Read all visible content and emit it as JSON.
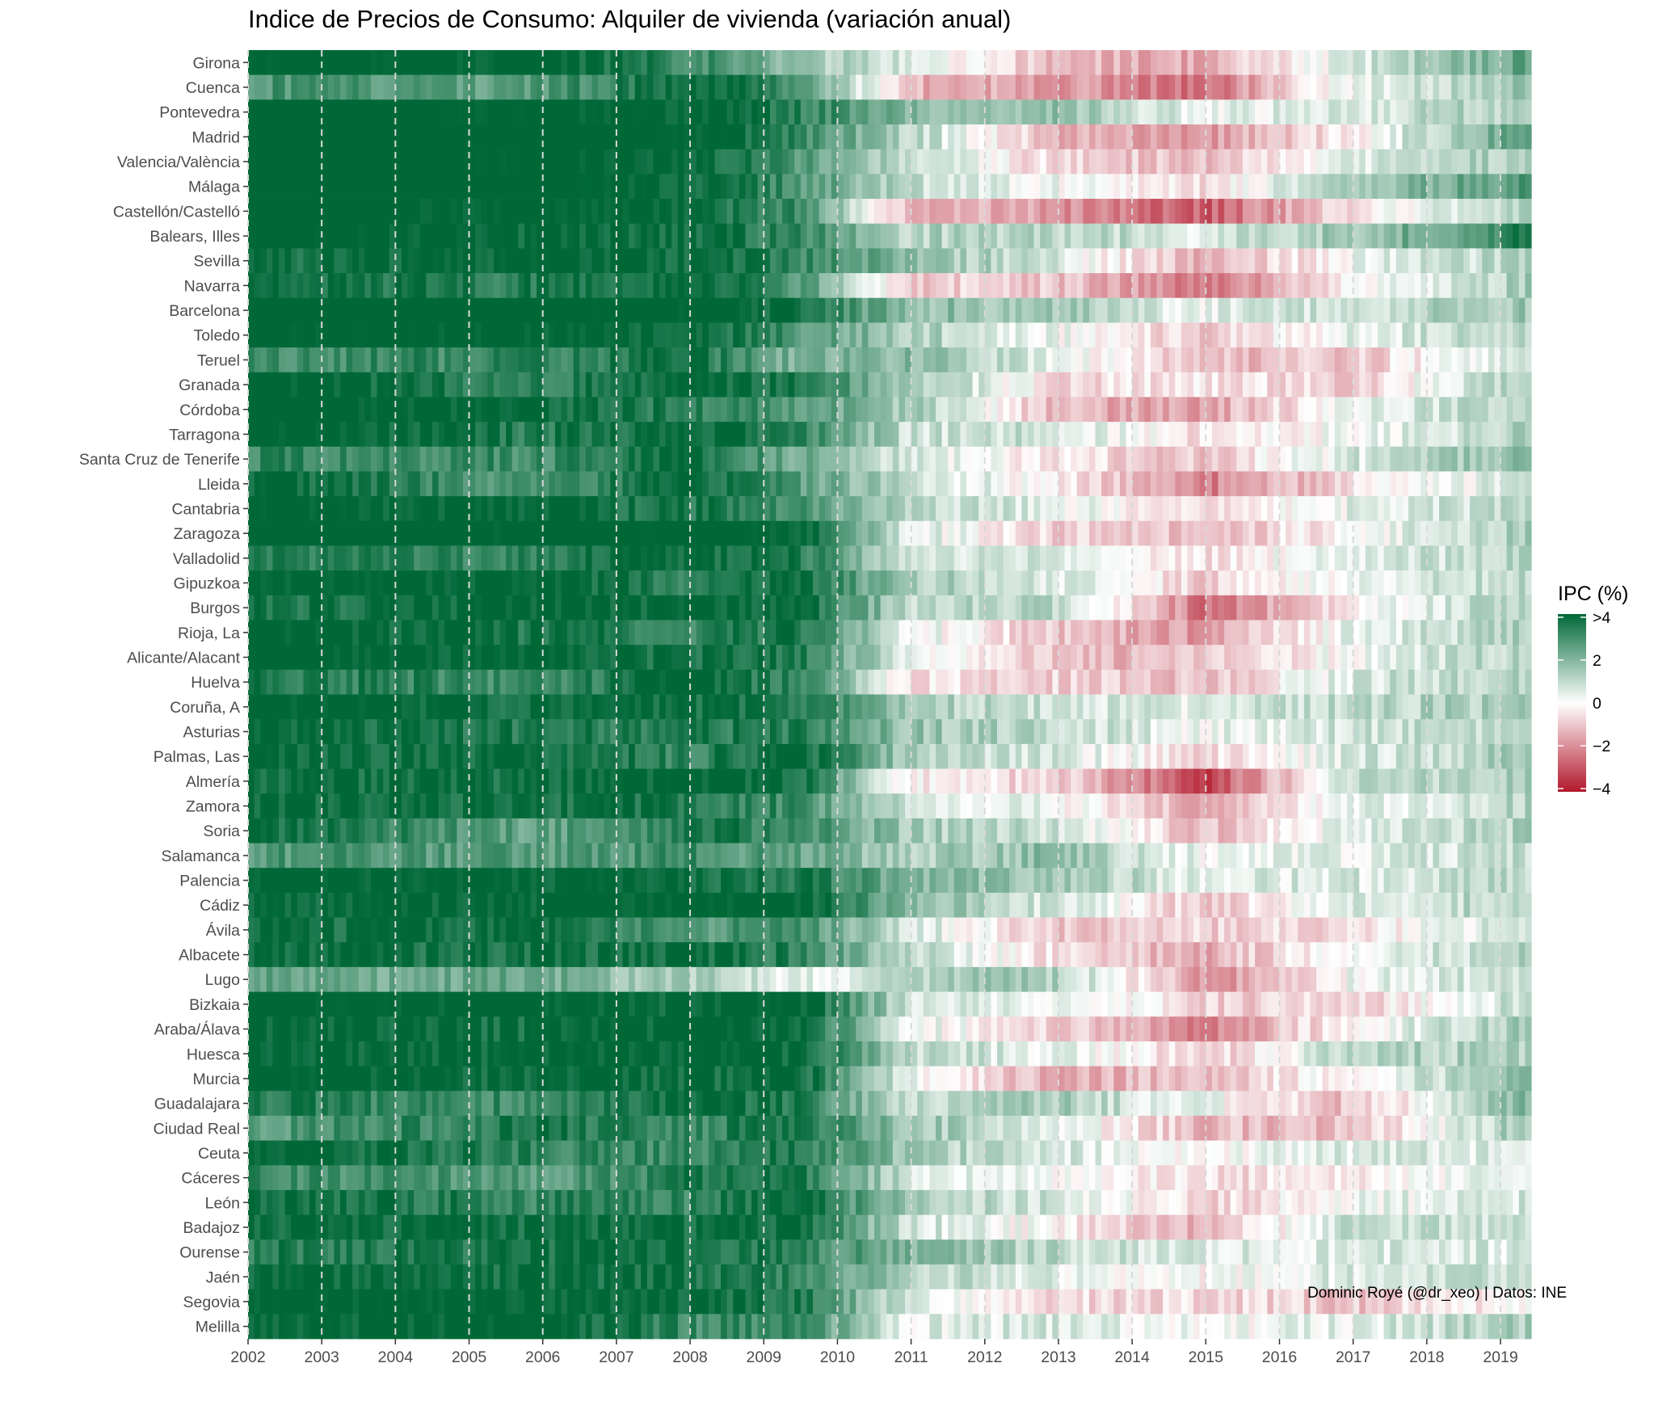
{
  "chart_data": {
    "type": "heatmap",
    "title": "Indice de Precios de Consumo: Alquiler de vivienda (variación anual)",
    "caption": "Dominic Royé (@dr_xeo) | Datos: INE",
    "xlabel": "",
    "ylabel": "",
    "x_ticks": [
      "2002",
      "2003",
      "2004",
      "2005",
      "2006",
      "2007",
      "2008",
      "2009",
      "2010",
      "2011",
      "2012",
      "2013",
      "2014",
      "2015",
      "2016",
      "2017",
      "2018",
      "2019"
    ],
    "x_range": [
      "2002-01",
      "2019-05"
    ],
    "grid": "dashed vertical lines at each year",
    "legend": {
      "title": "IPC (%)",
      "position": "right",
      "breaks": [
        ">4",
        "2",
        "0",
        "−2",
        "−4"
      ],
      "colors": [
        "#006837",
        "#ffffff",
        "#b2182b"
      ],
      "limits": [
        -4,
        4
      ]
    },
    "provinces": [
      "Girona",
      "Cuenca",
      "Pontevedra",
      "Madrid",
      "Valencia/València",
      "Málaga",
      "Castellón/Castelló",
      "Balears, Illes",
      "Sevilla",
      "Navarra",
      "Barcelona",
      "Toledo",
      "Teruel",
      "Granada",
      "Córdoba",
      "Tarragona",
      "Santa Cruz de Tenerife",
      "Lleida",
      "Cantabria",
      "Zaragoza",
      "Valladolid",
      "Gipuzkoa",
      "Burgos",
      "Rioja, La",
      "Alicante/Alacant",
      "Huelva",
      "Coruña, A",
      "Asturias",
      "Palmas, Las",
      "Almería",
      "Zamora",
      "Soria",
      "Salamanca",
      "Palencia",
      "Cádiz",
      "Ávila",
      "Albacete",
      "Lugo",
      "Bizkaia",
      "Araba/Álava",
      "Huesca",
      "Murcia",
      "Guadalajara",
      "Ciudad Real",
      "Ceuta",
      "Cáceres",
      "León",
      "Badajoz",
      "Ourense",
      "Jaén",
      "Segovia",
      "Melilla"
    ],
    "period_breaks": [
      "2002",
      "2006",
      "2008",
      "2009.5",
      "2011",
      "2013",
      "2015",
      "2017",
      "2019.4"
    ],
    "series": [
      {
        "name": "Girona",
        "values": [
          4.5,
          4.3,
          3.2,
          1.6,
          0.5,
          -1.2,
          -1.5,
          0.5,
          2.6
        ]
      },
      {
        "name": "Cuenca",
        "values": [
          2.8,
          2.6,
          4.2,
          3.0,
          -1.3,
          -1.6,
          -2.5,
          0.3,
          1.8
        ]
      },
      {
        "name": "Pontevedra",
        "values": [
          4.6,
          4.4,
          4.2,
          3.4,
          1.8,
          1.6,
          0.2,
          0.6,
          1.4
        ]
      },
      {
        "name": "Madrid",
        "values": [
          5.2,
          5.0,
          4.4,
          3.2,
          1.2,
          -1.2,
          -1.8,
          -0.2,
          2.8
        ]
      },
      {
        "name": "Valencia/València",
        "values": [
          4.8,
          4.4,
          4.2,
          2.8,
          0.8,
          -0.8,
          -1.2,
          0.4,
          1.6
        ]
      },
      {
        "name": "Málaga",
        "values": [
          4.8,
          4.6,
          4.0,
          2.8,
          1.0,
          0.2,
          -0.6,
          1.4,
          2.8
        ]
      },
      {
        "name": "Castellón/Castelló",
        "values": [
          4.2,
          4.4,
          4.0,
          3.0,
          -1.2,
          -1.8,
          -2.8,
          -0.4,
          1.4
        ]
      },
      {
        "name": "Balears, Illes",
        "values": [
          4.6,
          4.0,
          3.8,
          3.2,
          1.2,
          1.2,
          0.6,
          1.6,
          3.4
        ]
      },
      {
        "name": "Sevilla",
        "values": [
          3.6,
          4.2,
          3.8,
          3.2,
          1.8,
          0.6,
          -1.6,
          0.2,
          1.2
        ]
      },
      {
        "name": "Navarra",
        "values": [
          3.8,
          3.4,
          4.2,
          2.8,
          -0.8,
          -1.0,
          -2.4,
          -0.2,
          1.4
        ]
      },
      {
        "name": "Barcelona",
        "values": [
          5.0,
          4.6,
          4.4,
          3.6,
          1.8,
          1.4,
          0.4,
          0.8,
          1.6
        ]
      },
      {
        "name": "Toledo",
        "values": [
          4.4,
          4.2,
          4.0,
          2.8,
          1.4,
          0.2,
          -1.0,
          0.4,
          1.2
        ]
      },
      {
        "name": "Teruel",
        "values": [
          3.0,
          3.2,
          3.8,
          1.8,
          2.0,
          0.4,
          -1.2,
          -1.0,
          1.0
        ]
      },
      {
        "name": "Granada",
        "values": [
          4.6,
          3.2,
          4.2,
          3.4,
          1.6,
          -0.6,
          -0.4,
          -0.8,
          1.4
        ]
      },
      {
        "name": "Córdoba",
        "values": [
          4.6,
          4.0,
          3.4,
          2.8,
          1.4,
          -1.4,
          -1.6,
          0.2,
          1.4
        ]
      },
      {
        "name": "Tarragona",
        "values": [
          4.6,
          3.4,
          4.0,
          3.4,
          0.8,
          0.8,
          -0.6,
          0.2,
          1.2
        ]
      },
      {
        "name": "Santa Cruz de Tenerife",
        "values": [
          3.2,
          3.0,
          4.0,
          2.2,
          0.6,
          -0.4,
          -1.0,
          0.6,
          1.8
        ]
      },
      {
        "name": "Lleida",
        "values": [
          4.0,
          2.6,
          4.2,
          2.6,
          1.0,
          -0.2,
          -2.2,
          -0.6,
          0.8
        ]
      },
      {
        "name": "Cantabria",
        "values": [
          4.4,
          4.0,
          3.6,
          3.0,
          1.0,
          0.4,
          -0.6,
          0.4,
          1.0
        ]
      },
      {
        "name": "Zaragoza",
        "values": [
          4.8,
          4.4,
          4.6,
          4.2,
          0.6,
          -0.8,
          -1.2,
          0.0,
          1.4
        ]
      },
      {
        "name": "Valladolid",
        "values": [
          3.6,
          3.2,
          4.0,
          3.6,
          0.6,
          0.6,
          -0.6,
          0.6,
          1.0
        ]
      },
      {
        "name": "Gipuzkoa",
        "values": [
          4.4,
          4.2,
          3.2,
          3.8,
          1.4,
          0.6,
          -0.8,
          0.2,
          1.2
        ]
      },
      {
        "name": "Burgos",
        "values": [
          3.6,
          4.2,
          4.0,
          4.0,
          1.0,
          1.2,
          -2.6,
          -0.2,
          1.4
        ]
      },
      {
        "name": "Rioja, La",
        "values": [
          4.4,
          3.6,
          3.2,
          3.6,
          0.4,
          -1.0,
          -1.8,
          0.4,
          1.2
        ]
      },
      {
        "name": "Alicante/Alacant",
        "values": [
          4.6,
          3.8,
          3.8,
          3.6,
          0.2,
          -1.2,
          -1.2,
          0.2,
          1.2
        ]
      },
      {
        "name": "Huelva",
        "values": [
          3.6,
          3.0,
          4.2,
          3.0,
          -0.4,
          -0.8,
          -1.2,
          0.6,
          1.4
        ]
      },
      {
        "name": "Coruña, A",
        "values": [
          4.4,
          3.8,
          3.8,
          3.6,
          1.4,
          0.8,
          0.4,
          1.0,
          1.4
        ]
      },
      {
        "name": "Asturias",
        "values": [
          4.2,
          3.4,
          3.4,
          3.4,
          1.6,
          1.0,
          0.2,
          0.8,
          1.0
        ]
      },
      {
        "name": "Palmas, Las",
        "values": [
          4.0,
          3.8,
          3.2,
          4.2,
          1.2,
          0.6,
          -0.6,
          0.6,
          1.4
        ]
      },
      {
        "name": "Almería",
        "values": [
          3.8,
          3.8,
          4.2,
          3.8,
          -0.2,
          -0.8,
          -3.2,
          0.8,
          1.4
        ]
      },
      {
        "name": "Zamora",
        "values": [
          4.0,
          3.8,
          3.6,
          3.0,
          0.6,
          0.2,
          -1.6,
          0.2,
          1.2
        ]
      },
      {
        "name": "Soria",
        "values": [
          4.0,
          2.4,
          3.6,
          3.2,
          1.4,
          0.8,
          -1.2,
          0.6,
          1.2
        ]
      },
      {
        "name": "Salamanca",
        "values": [
          2.8,
          2.6,
          3.0,
          2.4,
          1.2,
          1.8,
          0.2,
          0.4,
          1.0
        ]
      },
      {
        "name": "Palencia",
        "values": [
          4.4,
          4.2,
          3.8,
          3.6,
          2.0,
          1.6,
          0.4,
          0.6,
          1.0
        ]
      },
      {
        "name": "Cádiz",
        "values": [
          4.0,
          4.2,
          4.4,
          4.2,
          1.8,
          0.6,
          -1.0,
          0.6,
          1.2
        ]
      },
      {
        "name": "Ávila",
        "values": [
          3.8,
          3.8,
          2.6,
          3.0,
          0.8,
          -1.0,
          -0.8,
          -0.6,
          1.0
        ]
      },
      {
        "name": "Albacete",
        "values": [
          3.8,
          3.6,
          4.0,
          3.2,
          1.0,
          -0.6,
          -1.4,
          0.2,
          1.2
        ]
      },
      {
        "name": "Lugo",
        "values": [
          2.4,
          2.2,
          1.4,
          0.2,
          1.2,
          1.4,
          -2.0,
          0.2,
          0.8
        ]
      },
      {
        "name": "Bizkaia",
        "values": [
          4.4,
          4.4,
          4.0,
          4.2,
          0.8,
          0.4,
          -0.8,
          -0.8,
          1.0
        ]
      },
      {
        "name": "Araba/Álava",
        "values": [
          4.2,
          3.8,
          4.2,
          4.0,
          0.4,
          -0.8,
          -2.2,
          0.0,
          1.4
        ]
      },
      {
        "name": "Huesca",
        "values": [
          4.2,
          4.0,
          4.2,
          4.0,
          1.0,
          0.4,
          -1.0,
          1.2,
          1.2
        ]
      },
      {
        "name": "Murcia",
        "values": [
          4.6,
          3.8,
          3.8,
          4.0,
          0.2,
          -1.4,
          -1.2,
          0.2,
          1.6
        ]
      },
      {
        "name": "Guadalajara",
        "values": [
          3.4,
          3.0,
          4.0,
          3.4,
          0.8,
          1.4,
          0.2,
          -1.2,
          2.2
        ]
      },
      {
        "name": "Ciudad Real",
        "values": [
          2.6,
          3.6,
          3.0,
          3.8,
          1.6,
          0.4,
          -1.2,
          -1.2,
          1.6
        ]
      },
      {
        "name": "Ceuta",
        "values": [
          4.2,
          3.2,
          3.0,
          3.6,
          1.4,
          0.6,
          0.0,
          0.6,
          0.6
        ]
      },
      {
        "name": "Cáceres",
        "values": [
          3.2,
          2.6,
          3.4,
          3.6,
          0.6,
          0.2,
          -0.6,
          -0.4,
          0.6
        ]
      },
      {
        "name": "León",
        "values": [
          4.0,
          3.2,
          3.2,
          4.0,
          1.4,
          0.6,
          -0.8,
          0.2,
          0.6
        ]
      },
      {
        "name": "Badajoz",
        "values": [
          4.0,
          3.8,
          3.8,
          4.0,
          0.8,
          -0.2,
          -1.4,
          1.0,
          0.6
        ]
      },
      {
        "name": "Ourense",
        "values": [
          3.4,
          3.6,
          3.8,
          3.2,
          2.0,
          1.0,
          0.4,
          0.6,
          0.6
        ]
      },
      {
        "name": "Jaén",
        "values": [
          4.0,
          3.8,
          3.8,
          3.2,
          1.2,
          0.4,
          -0.2,
          0.6,
          0.8
        ]
      },
      {
        "name": "Segovia",
        "values": [
          4.4,
          4.2,
          4.0,
          3.6,
          0.6,
          -0.6,
          -0.6,
          -1.0,
          0.0
        ]
      },
      {
        "name": "Melilla",
        "values": [
          4.0,
          4.4,
          3.0,
          3.0,
          0.4,
          0.6,
          0.0,
          0.4,
          1.4
        ]
      }
    ]
  }
}
